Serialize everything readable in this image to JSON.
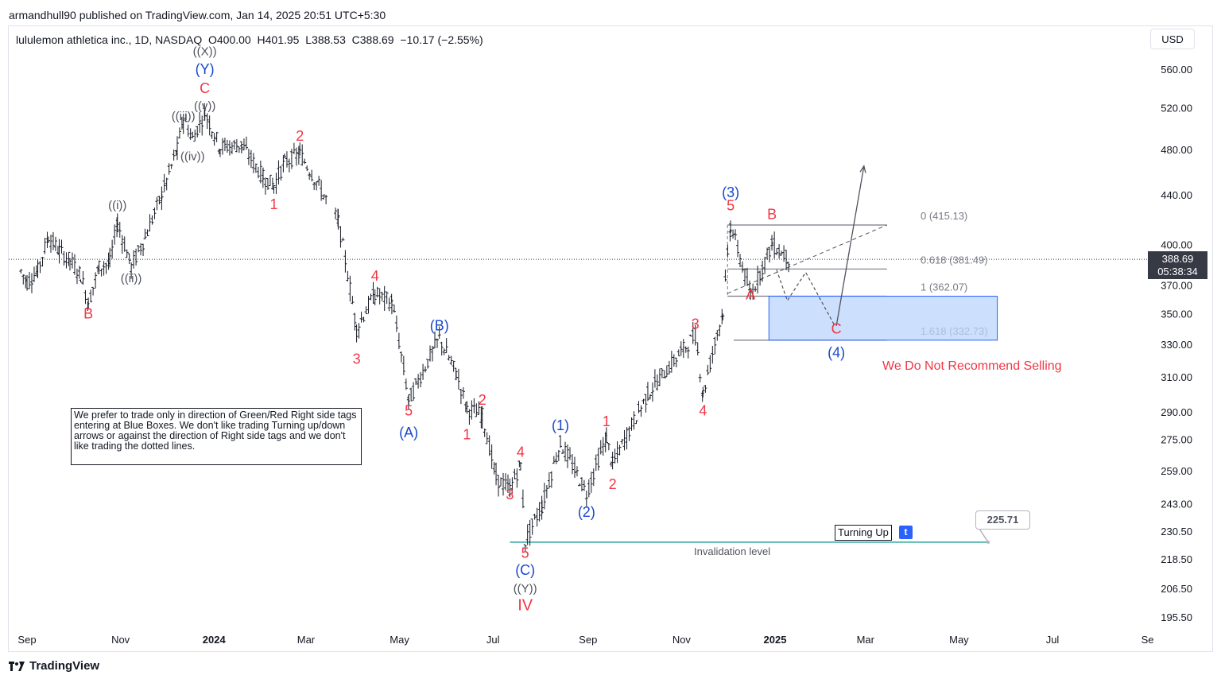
{
  "header": {
    "publisher": "armandhull90 published on TradingView.com, Jan 14, 2025 20:51 UTC+5:30",
    "symbol": "lululemon athletica inc., 1D, NASDAQ",
    "open_label": "O",
    "open": "400.00",
    "high_label": "H",
    "high": "401.95",
    "low_label": "L",
    "low": "388.53",
    "close_label": "C",
    "close": "388.69",
    "change": "−10.17 (−2.55%)",
    "currency": "USD"
  },
  "footer": {
    "brand": "TradingView"
  },
  "price_tag": {
    "price": "388.69",
    "countdown": "05:38:34"
  },
  "note": "We prefer to trade only in direction of Green/Red Right side tags entering at Blue Boxes. We don't like trading Turning up/down arrows or against the direction of Right side tags and we don't like trading the dotted lines.",
  "notice": "We Do Not Recommend Selling",
  "turning_up": "Turning Up",
  "turning_badge": "t",
  "invalidation": {
    "label": "Invalidation level",
    "value": "225.71"
  },
  "colors": {
    "red": "#f23645",
    "blue": "#1848cc",
    "black": "#131722",
    "box": "#bbd4fb",
    "invalidation": "#26a69a"
  },
  "chart_data": {
    "type": "candlestick",
    "y_axis_ticks": [
      "560.00",
      "520.00",
      "480.00",
      "440.00",
      "400.00",
      "370.00",
      "350.00",
      "330.00",
      "310.00",
      "290.00",
      "275.00",
      "259.00",
      "243.00",
      "230.50",
      "218.50",
      "206.50",
      "195.50"
    ],
    "x_axis_ticks": [
      {
        "label": "Sep",
        "bold": false
      },
      {
        "label": "Nov",
        "bold": false
      },
      {
        "label": "2024",
        "bold": true
      },
      {
        "label": "Mar",
        "bold": false
      },
      {
        "label": "May",
        "bold": false
      },
      {
        "label": "Jul",
        "bold": false
      },
      {
        "label": "Sep",
        "bold": false
      },
      {
        "label": "Nov",
        "bold": false
      },
      {
        "label": "2025",
        "bold": true
      },
      {
        "label": "Mar",
        "bold": false
      },
      {
        "label": "May",
        "bold": false
      },
      {
        "label": "Jul",
        "bold": false
      },
      {
        "label": "Se",
        "bold": false
      }
    ],
    "fib_levels": [
      {
        "label": "0 (415.13)",
        "value": 415.13
      },
      {
        "label": "0.618 (381.49)",
        "value": 381.49
      },
      {
        "label": "1 (362.07)",
        "value": 362.07
      },
      {
        "label": "1.618 (332.73)",
        "value": 332.73
      }
    ],
    "wave_labels": [
      {
        "t": "((X))",
        "c": "black",
        "d": "2023-12-26",
        "p": 575
      },
      {
        "t": "(Y)",
        "c": "blue",
        "d": "2023-12-26",
        "p": 555
      },
      {
        "t": "C",
        "c": "red",
        "d": "2023-12-26",
        "p": 535
      },
      {
        "t": "((v))",
        "c": "black",
        "d": "2023-12-26",
        "p": 518
      },
      {
        "t": "((iii))",
        "c": "black",
        "d": "2023-12-12",
        "p": 508
      },
      {
        "t": "((iv))",
        "c": "black",
        "d": "2023-12-18",
        "p": 470
      },
      {
        "t": "2",
        "c": "red",
        "d": "2024-02-26",
        "p": 488
      },
      {
        "t": "1",
        "c": "red",
        "d": "2024-02-09",
        "p": 428
      },
      {
        "t": "((i))",
        "c": "black",
        "d": "2023-10-30",
        "p": 428
      },
      {
        "t": "((ii))",
        "c": "black",
        "d": "2023-11-08",
        "p": 372
      },
      {
        "t": "B",
        "c": "red",
        "d": "2023-10-11",
        "p": 347
      },
      {
        "t": "4",
        "c": "red",
        "d": "2024-04-15",
        "p": 373
      },
      {
        "t": "3",
        "c": "red",
        "d": "2024-04-03",
        "p": 318
      },
      {
        "t": "(B)",
        "c": "blue",
        "d": "2024-05-27",
        "p": 339
      },
      {
        "t": "5",
        "c": "red",
        "d": "2024-05-07",
        "p": 288
      },
      {
        "t": "(A)",
        "c": "blue",
        "d": "2024-05-07",
        "p": 276
      },
      {
        "t": "2",
        "c": "red",
        "d": "2024-06-24",
        "p": 294
      },
      {
        "t": "1",
        "c": "red",
        "d": "2024-06-14",
        "p": 275
      },
      {
        "t": "4",
        "c": "red",
        "d": "2024-07-19",
        "p": 266
      },
      {
        "t": "3",
        "c": "red",
        "d": "2024-07-12",
        "p": 245
      },
      {
        "t": "5",
        "c": "red",
        "d": "2024-07-22",
        "p": 219
      },
      {
        "t": "(C)",
        "c": "blue",
        "d": "2024-07-22",
        "p": 212
      },
      {
        "t": "((Y))",
        "c": "black",
        "d": "2024-07-22",
        "p": 205
      },
      {
        "t": "IV",
        "c": "red",
        "d": "2024-07-22",
        "p": 198
      },
      {
        "t": "(1)",
        "c": "blue",
        "d": "2024-08-14",
        "p": 280
      },
      {
        "t": "1",
        "c": "red",
        "d": "2024-09-13",
        "p": 282
      },
      {
        "t": "(2)",
        "c": "blue",
        "d": "2024-08-31",
        "p": 237
      },
      {
        "t": "2",
        "c": "red",
        "d": "2024-09-17",
        "p": 250
      },
      {
        "t": "3",
        "c": "red",
        "d": "2024-11-10",
        "p": 340
      },
      {
        "t": "4",
        "c": "red",
        "d": "2024-11-15",
        "p": 288
      },
      {
        "t": "(3)",
        "c": "blue",
        "d": "2024-12-03",
        "p": 438
      },
      {
        "t": "5",
        "c": "red",
        "d": "2024-12-03",
        "p": 427
      },
      {
        "t": "B",
        "c": "red",
        "d": "2024-12-30",
        "p": 420
      },
      {
        "t": "A",
        "c": "red",
        "d": "2024-12-16",
        "p": 360
      },
      {
        "t": "C",
        "c": "red",
        "d": "2025-02-10",
        "p": 337
      },
      {
        "t": "(4)",
        "c": "blue",
        "d": "2025-02-10",
        "p": 322
      }
    ],
    "projection": {
      "dashed": [
        [
          "2025-01-02",
          381
        ],
        [
          "2025-01-09",
          359
        ],
        [
          "2025-01-21",
          379
        ],
        [
          "2025-02-09",
          342
        ]
      ],
      "arrow": [
        [
          "2025-02-10",
          342
        ],
        [
          "2025-02-28",
          465
        ]
      ]
    },
    "ohlc_path": [
      [
        "2023-08-28",
        380
      ],
      [
        "2023-09-01",
        372
      ],
      [
        "2023-09-08",
        380
      ],
      [
        "2023-09-15",
        406
      ],
      [
        "2023-09-22",
        395
      ],
      [
        "2023-09-29",
        388
      ],
      [
        "2023-10-06",
        377
      ],
      [
        "2023-10-11",
        357
      ],
      [
        "2023-10-18",
        383
      ],
      [
        "2023-10-25",
        386
      ],
      [
        "2023-10-30",
        417
      ],
      [
        "2023-11-08",
        383
      ],
      [
        "2023-11-17",
        405
      ],
      [
        "2023-11-28",
        440
      ],
      [
        "2023-12-08",
        480
      ],
      [
        "2023-12-12",
        510
      ],
      [
        "2023-12-18",
        490
      ],
      [
        "2023-12-26",
        515
      ],
      [
        "2024-01-05",
        482
      ],
      [
        "2024-01-19",
        484
      ],
      [
        "2024-02-02",
        455
      ],
      [
        "2024-02-09",
        448
      ],
      [
        "2024-02-16",
        468
      ],
      [
        "2024-02-26",
        476
      ],
      [
        "2024-03-22",
        418
      ],
      [
        "2024-04-03",
        340
      ],
      [
        "2024-04-15",
        364
      ],
      [
        "2024-04-26",
        358
      ],
      [
        "2024-05-07",
        296
      ],
      [
        "2024-05-27",
        334
      ],
      [
        "2024-06-07",
        312
      ],
      [
        "2024-06-14",
        292
      ],
      [
        "2024-06-24",
        288
      ],
      [
        "2024-07-03",
        255
      ],
      [
        "2024-07-12",
        250
      ],
      [
        "2024-07-19",
        262
      ],
      [
        "2024-07-22",
        226
      ],
      [
        "2024-08-02",
        242
      ],
      [
        "2024-08-14",
        273
      ],
      [
        "2024-08-31",
        248
      ],
      [
        "2024-09-13",
        276
      ],
      [
        "2024-09-17",
        262
      ],
      [
        "2024-10-10",
        300
      ],
      [
        "2024-11-10",
        336
      ],
      [
        "2024-11-15",
        300
      ],
      [
        "2024-11-28",
        352
      ],
      [
        "2024-12-03",
        415
      ],
      [
        "2024-12-16",
        362
      ],
      [
        "2024-12-30",
        400
      ],
      [
        "2025-01-10",
        389
      ]
    ]
  }
}
